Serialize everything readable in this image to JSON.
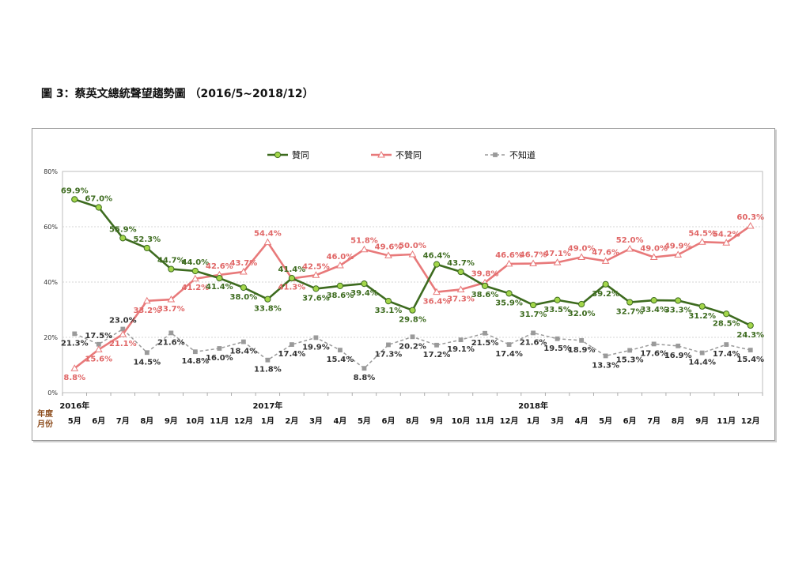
{
  "page": {
    "heading": "圖 3：蔡英文總統聲望趨勢圖 （2016/5~2018/12）"
  },
  "chart_data": {
    "type": "line",
    "y_axis": {
      "ticks": [
        "0%",
        "20%",
        "40%",
        "60%",
        "80%"
      ],
      "ylim": [
        0,
        80
      ]
    },
    "x_axis": {
      "row_labels": [
        "年度",
        "月份"
      ],
      "categories": [
        "5月",
        "6月",
        "7月",
        "8月",
        "9月",
        "10月",
        "11月",
        "12月",
        "1月",
        "2月",
        "3月",
        "4月",
        "5月",
        "6月",
        "8月",
        "9月",
        "10月",
        "11月",
        "12月",
        "1月",
        "3月",
        "4月",
        "5月",
        "6月",
        "7月",
        "8月",
        "9月",
        "11月",
        "12月"
      ],
      "year_labels": [
        {
          "label": "2016年",
          "index": 0
        },
        {
          "label": "2017年",
          "index": 8
        },
        {
          "label": "2018年",
          "index": 19
        }
      ]
    },
    "legend_position": "top-center",
    "grid": true,
    "series": [
      {
        "name": "贊同",
        "color": "#3d6b1f",
        "marker_fill": "#a3d64a",
        "marker": "circle",
        "line_style": "solid",
        "values": [
          69.9,
          67.0,
          55.9,
          52.3,
          44.7,
          44.0,
          41.4,
          38.0,
          33.8,
          41.4,
          37.6,
          38.6,
          39.4,
          33.1,
          29.8,
          46.4,
          43.7,
          38.6,
          35.9,
          31.7,
          33.5,
          32.0,
          39.2,
          32.7,
          33.4,
          33.3,
          31.2,
          28.5,
          24.3
        ],
        "labels": [
          "69.9%",
          "67.0%",
          "55.9%",
          "52.3%",
          "44.7%",
          "44.0%",
          "41.4%",
          "38.0%",
          "33.8%",
          "41.4%",
          "37.6%",
          "38.6%",
          "39.4%",
          "33.1%",
          "29.8%",
          "46.4%",
          "43.7%",
          "38.6%",
          "35.9%",
          "31.7%",
          "33.5%",
          "32.0%",
          "39.2%",
          "32.7%",
          "33.4%",
          "33.3%",
          "31.2%",
          "28.5%",
          "24.3%"
        ]
      },
      {
        "name": "不贊同",
        "color": "#e8797a",
        "marker_fill": "#ffffff",
        "marker": "triangle",
        "line_style": "solid",
        "values": [
          8.8,
          15.6,
          21.1,
          33.2,
          33.7,
          41.2,
          42.6,
          43.7,
          54.4,
          41.3,
          42.5,
          46.0,
          51.8,
          49.6,
          50.0,
          36.4,
          37.3,
          39.8,
          46.6,
          46.7,
          47.1,
          49.0,
          47.6,
          52.0,
          49.0,
          49.9,
          54.5,
          54.2,
          60.3
        ],
        "labels": [
          "8.8%",
          "15.6%",
          "21.1%",
          "33.2%",
          "33.7%",
          "41.2%",
          "42.6%",
          "43.7%",
          "54.4%",
          "41.3%",
          "42.5%",
          "46.0%",
          "51.8%",
          "49.6%",
          "50.0%",
          "36.4%",
          "37.3%",
          "39.8%",
          "46.6%",
          "46.7%",
          "47.1%",
          "49.0%",
          "47.6%",
          "52.0%",
          "49.0%",
          "49.9%",
          "54.5%",
          "54.2%",
          "60.3%"
        ]
      },
      {
        "name": "不知道",
        "color": "#9a9a9a",
        "marker_fill": "#9a9a9a",
        "marker": "square",
        "line_style": "dashed",
        "values": [
          21.3,
          17.5,
          23.0,
          14.5,
          21.6,
          14.8,
          16.0,
          18.4,
          11.8,
          17.4,
          19.9,
          15.4,
          8.8,
          17.3,
          20.2,
          17.2,
          19.1,
          21.5,
          17.4,
          21.6,
          19.5,
          18.9,
          13.3,
          15.3,
          17.6,
          16.9,
          14.4,
          17.4,
          15.4
        ],
        "labels": [
          "21.3%",
          "17.5%",
          "23.0%",
          "14.5%",
          "21.6%",
          "14.8%",
          "16.0%",
          "18.4%",
          "11.8%",
          "17.4%",
          "19.9%",
          "15.4%",
          "8.8%",
          "17.3%",
          "20.2%",
          "17.2%",
          "19.1%",
          "21.5%",
          "17.4%",
          "21.6%",
          "19.5%",
          "18.9%",
          "13.3%",
          "15.3%",
          "17.6%",
          "16.9%",
          "14.4%",
          "17.4%",
          "15.4%"
        ]
      }
    ]
  }
}
